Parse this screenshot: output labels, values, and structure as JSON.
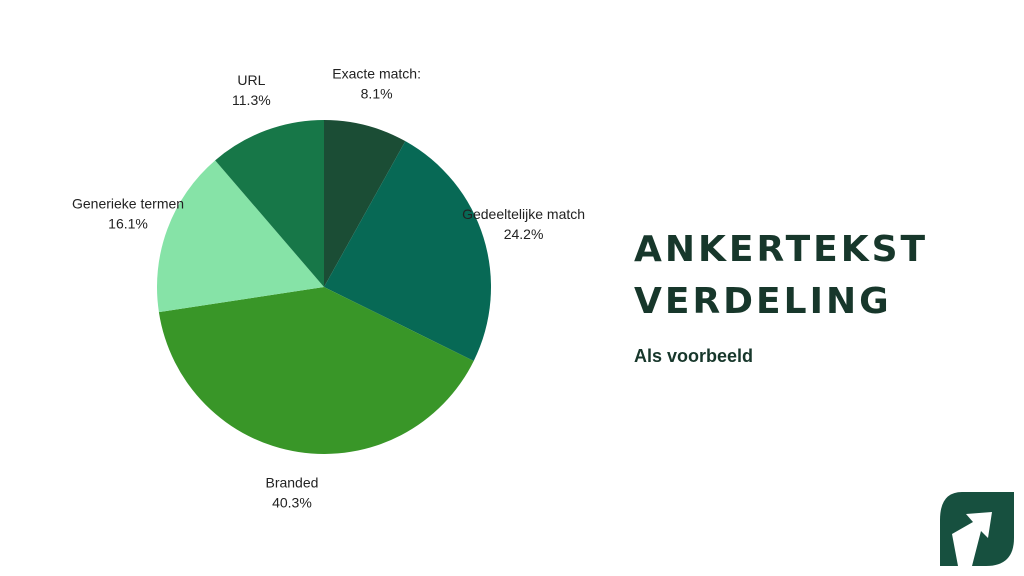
{
  "chart_data": {
    "type": "pie",
    "title": "ANKERTEKST VERDELING",
    "subtitle": "Als voorbeeld",
    "start": "12 o'clock",
    "direction": "clockwise",
    "slices": [
      {
        "name": "Exacte match:",
        "value": 8.1,
        "label": "8.1%",
        "color": "#1b4d35"
      },
      {
        "name": "Gedeeltelijke match",
        "value": 24.2,
        "label": "24.2%",
        "color": "#076955"
      },
      {
        "name": "Branded",
        "value": 40.3,
        "label": "40.3%",
        "color": "#399628"
      },
      {
        "name": "Generieke termen",
        "value": 16.1,
        "label": "16.1%",
        "color": "#86e3a7"
      },
      {
        "name": "URL",
        "value": 11.3,
        "label": "11.3%",
        "color": "#177748"
      }
    ]
  },
  "header": {
    "title_line1": "ANKERTEKST",
    "title_line2": "VERDELING",
    "subtitle": "Als voorbeeld"
  },
  "logo": {
    "icon": "arrow-leaf-logo",
    "color": "#17503f"
  }
}
